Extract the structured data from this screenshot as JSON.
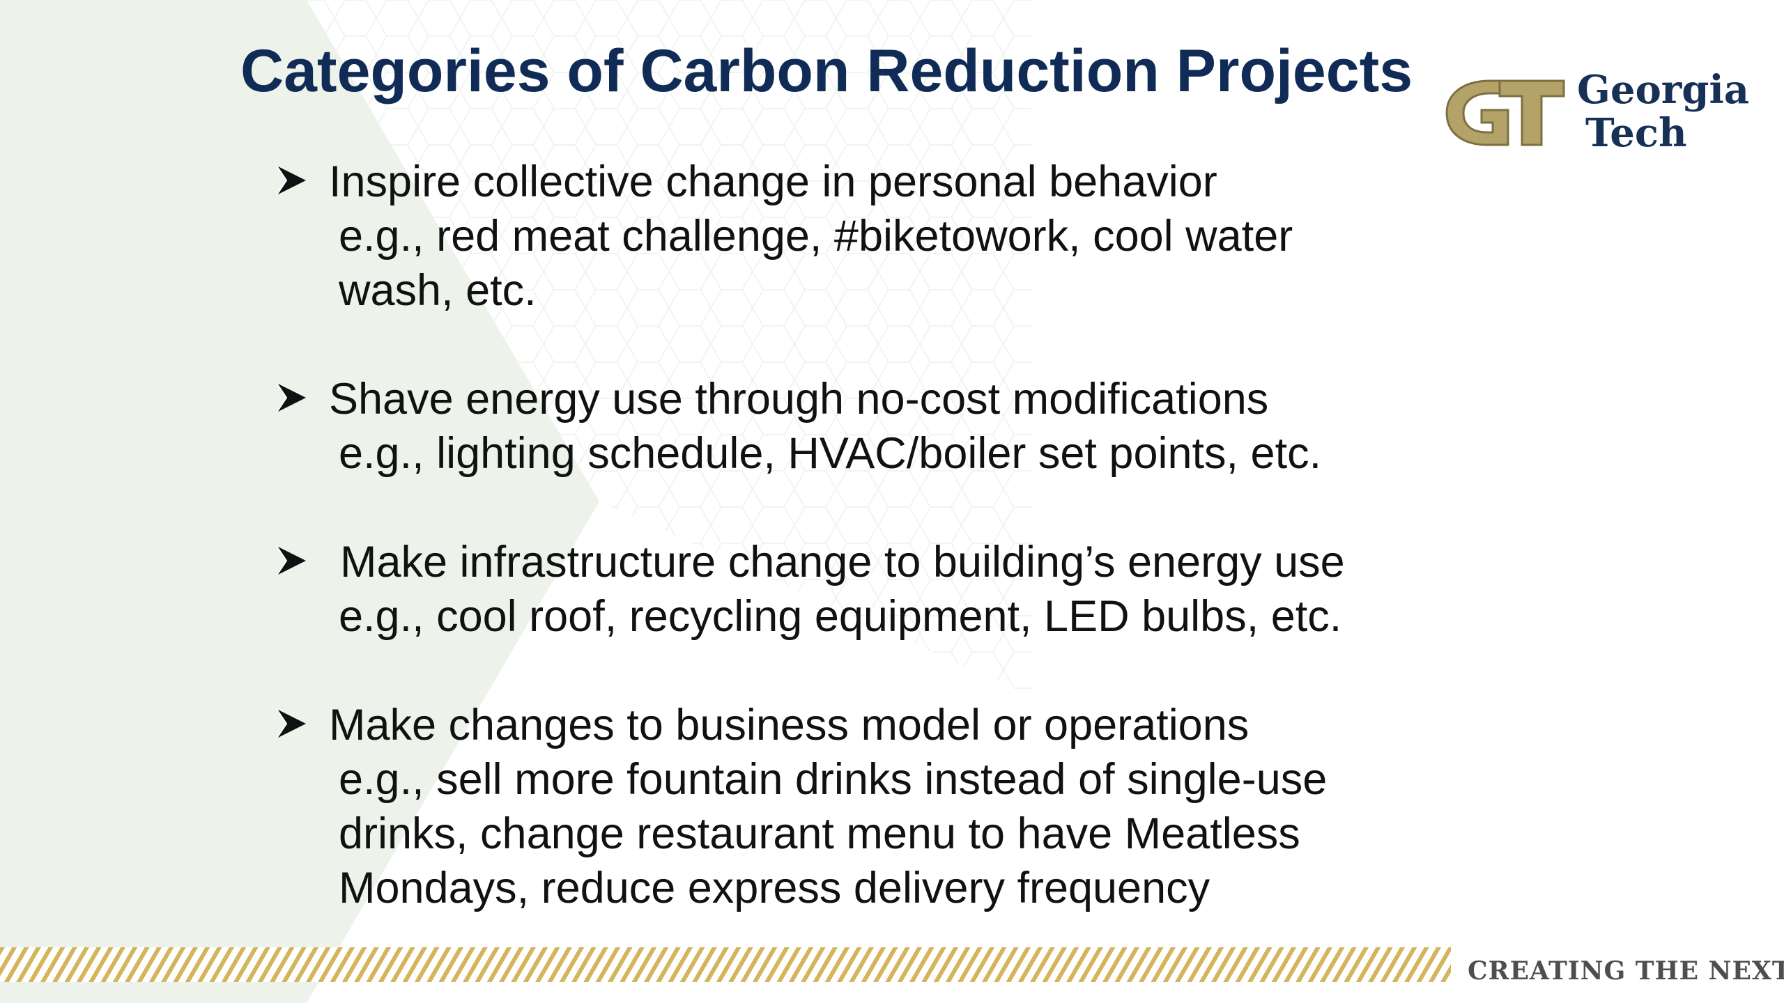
{
  "slide": {
    "title": "Categories of Carbon Reduction Projects",
    "bullets": [
      {
        "headline": "Inspire collective change in personal behavior",
        "example_lines": [
          "e.g., red meat challenge, #biketowork, cool water",
          "wash, etc."
        ]
      },
      {
        "headline": "Shave energy use through no-cost modifications",
        "example_lines": [
          "e.g., lighting schedule, HVAC/boiler set points, etc."
        ]
      },
      {
        "headline": "Make infrastructure change to building’s energy use",
        "example_lines": [
          "e.g., cool roof, recycling equipment, LED bulbs, etc."
        ]
      },
      {
        "headline": "Make changes to business model or operations",
        "example_lines": [
          "e.g., sell more fountain drinks instead of single-use",
          "drinks, change restaurant menu to have Meatless",
          "Mondays, reduce express delivery frequency"
        ]
      }
    ]
  },
  "branding": {
    "logo_line1": "Georgia",
    "logo_line2": "Tech",
    "logo_mark": "GT",
    "tagline": "CREATING THE NEXT",
    "tagline_mark": "®"
  },
  "icons": {
    "bullet": "arrowhead-bullet-icon"
  },
  "colors": {
    "title": "#0f2b56",
    "gold": "#b3a369",
    "stripe": "#d4b55c",
    "text": "#111111",
    "background_tint": "#edf3ea"
  }
}
